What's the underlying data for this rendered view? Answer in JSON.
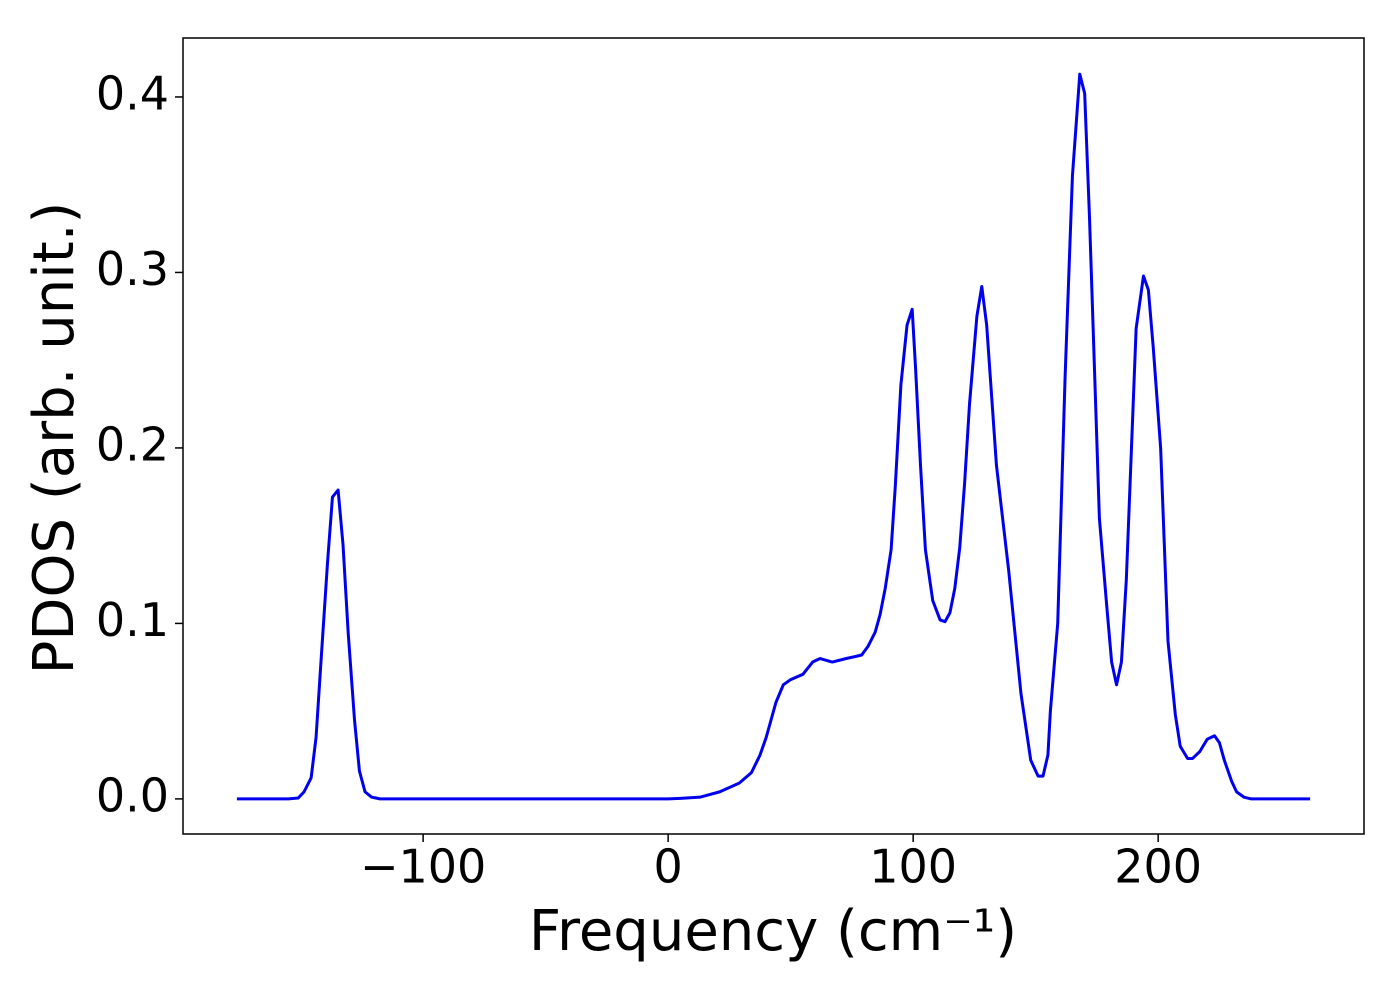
{
  "chart_data": {
    "type": "line",
    "x_label": "Frequency (cm⁻¹)",
    "y_label": "PDOS (arb. unit.)",
    "color": "#0000ee",
    "x": [
      -176,
      -155,
      -151,
      -148.6,
      -145.7,
      -143.7,
      -141.6,
      -139,
      -137,
      -134.7,
      -132.7,
      -130.6,
      -128,
      -126,
      -123.7,
      -121,
      -117.6,
      0,
      5,
      13,
      21,
      29,
      34,
      37.5,
      40,
      44,
      47,
      50,
      55,
      59,
      62,
      67,
      72.7,
      76,
      79,
      81.6,
      84.5,
      86.5,
      88.6,
      91,
      92.7,
      95,
      97.5,
      99.6,
      101,
      103,
      105,
      108,
      111,
      113,
      115,
      117,
      119,
      121,
      123,
      126,
      128,
      130,
      134,
      139,
      144,
      148,
      151,
      153,
      155,
      156,
      159,
      162,
      165,
      168,
      170,
      172,
      176,
      179,
      181,
      183,
      185,
      187,
      191,
      194,
      196,
      198,
      201,
      204,
      207,
      209,
      212,
      214,
      217,
      220,
      223,
      225,
      227,
      230,
      232,
      235,
      238,
      262
    ],
    "values": [
      0,
      0,
      0.0005,
      0.004,
      0.012,
      0.035,
      0.08,
      0.135,
      0.172,
      0.176,
      0.145,
      0.095,
      0.045,
      0.016,
      0.004,
      0.001,
      0,
      0,
      0.0003,
      0.001,
      0.004,
      0.009,
      0.015,
      0.025,
      0.035,
      0.055,
      0.065,
      0.068,
      0.071,
      0.078,
      0.08,
      0.078,
      0.08,
      0.081,
      0.082,
      0.087,
      0.095,
      0.105,
      0.12,
      0.142,
      0.178,
      0.236,
      0.27,
      0.279,
      0.245,
      0.19,
      0.142,
      0.113,
      0.102,
      0.101,
      0.106,
      0.12,
      0.143,
      0.18,
      0.225,
      0.275,
      0.292,
      0.27,
      0.19,
      0.13,
      0.06,
      0.022,
      0.013,
      0.013,
      0.025,
      0.05,
      0.1,
      0.24,
      0.355,
      0.413,
      0.402,
      0.33,
      0.16,
      0.11,
      0.078,
      0.065,
      0.078,
      0.125,
      0.268,
      0.298,
      0.29,
      0.257,
      0.2,
      0.09,
      0.048,
      0.03,
      0.023,
      0.023,
      0.027,
      0.034,
      0.036,
      0.032,
      0.022,
      0.01,
      0.004,
      0.001,
      0,
      0
    ],
    "xlim": [
      -198,
      284
    ],
    "ylim": [
      -0.02,
      0.4336
    ],
    "xticks": [
      {
        "value": -100,
        "label": "−100"
      },
      0,
      100,
      200
    ],
    "yticks": [
      {
        "value": 0,
        "label": "0.0"
      },
      0.1,
      0.2,
      0.3,
      0.4
    ],
    "grid": false
  }
}
